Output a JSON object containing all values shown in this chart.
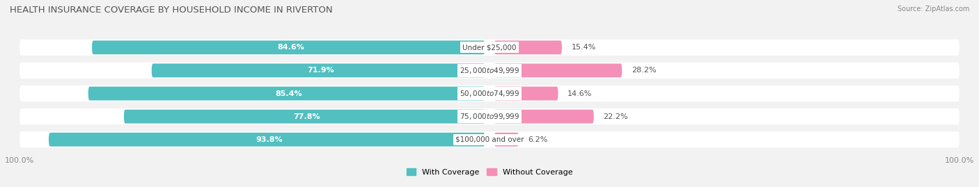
{
  "title": "HEALTH INSURANCE COVERAGE BY HOUSEHOLD INCOME IN RIVERTON",
  "source": "Source: ZipAtlas.com",
  "categories": [
    "Under $25,000",
    "$25,000 to $49,999",
    "$50,000 to $74,999",
    "$75,000 to $99,999",
    "$100,000 and over"
  ],
  "with_coverage": [
    84.6,
    71.9,
    85.4,
    77.8,
    93.8
  ],
  "without_coverage": [
    15.4,
    28.2,
    14.6,
    22.2,
    6.2
  ],
  "color_with": "#52bfc1",
  "color_without": "#f490b8",
  "bg_color": "#f2f2f2",
  "bar_bg_color": "#ffffff",
  "row_bg_color": "#e8e8e8",
  "title_fontsize": 9.5,
  "label_fontsize": 8,
  "tick_fontsize": 8,
  "legend_fontsize": 8,
  "source_fontsize": 7
}
